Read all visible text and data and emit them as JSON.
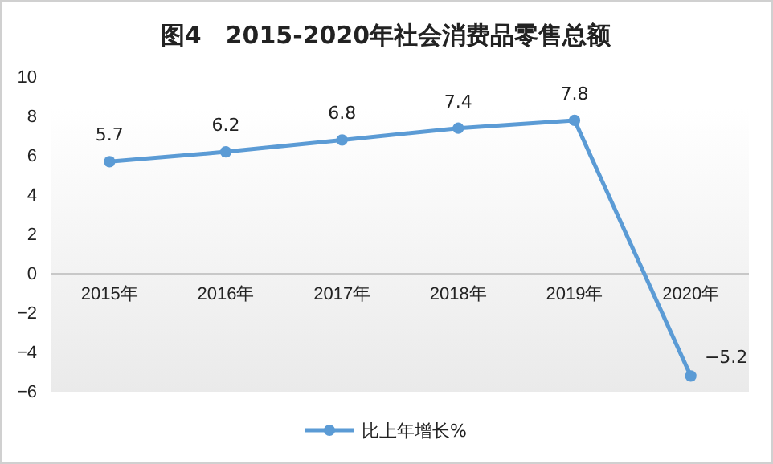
{
  "chart_data": {
    "type": "line",
    "title": "图4　2015-2020年社会消费品零售总额",
    "categories": [
      "2015年",
      "2016年",
      "2017年",
      "2018年",
      "2019年",
      "2020年"
    ],
    "series": [
      {
        "name": "比上年增长%",
        "color": "#5b9bd5",
        "values": [
          5.7,
          6.2,
          6.8,
          7.4,
          7.8,
          -5.2
        ]
      }
    ],
    "ylim": [
      -6,
      10
    ],
    "yticks": [
      10,
      8,
      6,
      4,
      2,
      0,
      -2,
      -4,
      -6
    ],
    "grid": false,
    "legend": "bottom",
    "marker": "circle",
    "line_style": "solid",
    "data_labels": true
  }
}
